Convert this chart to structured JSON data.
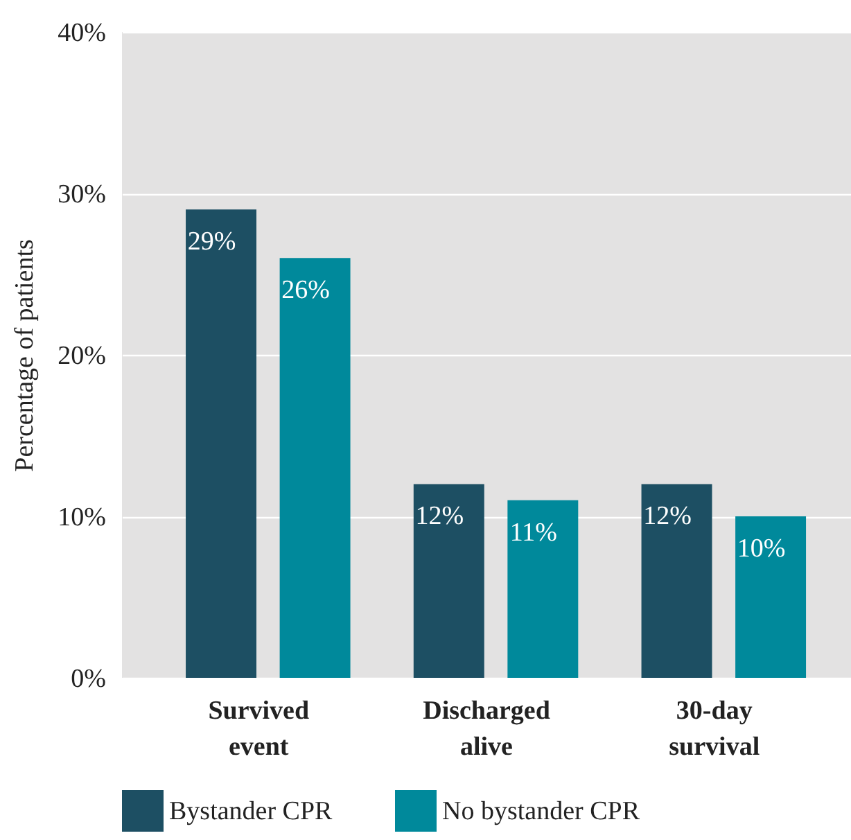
{
  "chart_data": {
    "type": "bar",
    "ylabel": "Percentage of patients",
    "categories": [
      "Survived event",
      "Discharged alive",
      "30-day survival"
    ],
    "series": [
      {
        "name": "Bystander CPR",
        "color": "#1d4f63",
        "values": [
          29,
          12,
          12
        ],
        "value_labels": [
          "29%",
          "12%",
          "12%"
        ]
      },
      {
        "name": "No bystander CPR",
        "color": "#00899b",
        "values": [
          26,
          11,
          10
        ],
        "value_labels": [
          "26%",
          "11%",
          "10%"
        ]
      }
    ],
    "ylim": [
      0,
      40
    ],
    "yticks": [
      {
        "value": 0,
        "label": "0%"
      },
      {
        "value": 10,
        "label": "10%"
      },
      {
        "value": 20,
        "label": "20%"
      },
      {
        "value": 30,
        "label": "30%"
      },
      {
        "value": 40,
        "label": "40%"
      }
    ],
    "grid": "y",
    "legend": "bottom"
  }
}
